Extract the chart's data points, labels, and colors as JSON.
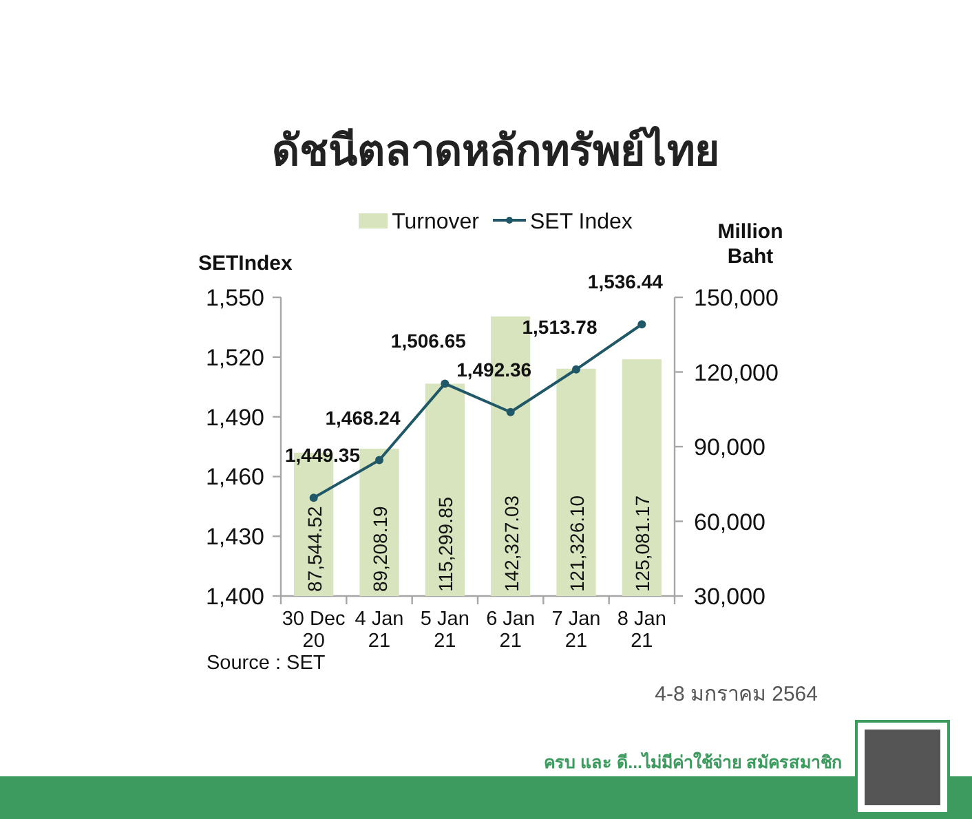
{
  "chart_data": {
    "type": "bar",
    "title": "ดัชนีตลาดหลักทรัพย์ไทย",
    "ylabel": "SETIndex",
    "y2label": "Million Baht",
    "categories": [
      "30 Dec 20",
      "4 Jan 21",
      "5 Jan 21",
      "6 Jan 21",
      "7 Jan 21",
      "8 Jan 21"
    ],
    "series": [
      {
        "name": "Turnover",
        "axis": "y2",
        "color": "#d7e4bd",
        "values": [
          87544.52,
          89208.19,
          115299.85,
          142327.03,
          121326.1,
          125081.17
        ],
        "value_labels": [
          "87,544.52",
          "89,208.19",
          "115,299.85",
          "142,327.03",
          "121,326.10",
          "125,081.17"
        ]
      },
      {
        "name": "SET Index",
        "type": "line",
        "color": "#215868",
        "values": [
          1449.35,
          1468.24,
          1506.65,
          1492.36,
          1513.78,
          1536.44
        ],
        "value_labels": [
          "1,449.35",
          "1,468.24",
          "1,506.65",
          "1,492.36",
          "1,513.78",
          "1,536.44"
        ]
      }
    ],
    "ylim": [
      1400,
      1550
    ],
    "yticks": [
      {
        "value": 1400,
        "label": "1,400"
      },
      {
        "value": 1430,
        "label": "1,430"
      },
      {
        "value": 1460,
        "label": "1,460"
      },
      {
        "value": 1490,
        "label": "1,490"
      },
      {
        "value": 1520,
        "label": "1,520"
      },
      {
        "value": 1550,
        "label": "1,550"
      }
    ],
    "y2lim": [
      30000,
      150000
    ],
    "y2ticks": [
      {
        "value": 30000,
        "label": "30,000"
      },
      {
        "value": 60000,
        "label": "60,000"
      },
      {
        "value": 90000,
        "label": "90,000"
      },
      {
        "value": 120000,
        "label": "120,000"
      },
      {
        "value": 150000,
        "label": "150,000"
      }
    ],
    "legend": "top",
    "marker": "circle",
    "annotations": [
      "Source : SET",
      "4-8 มกราคม 2564",
      "ครบ และ ดี...ไม่มีค่าใช้จ่าย สมัครสมาชิก"
    ]
  }
}
